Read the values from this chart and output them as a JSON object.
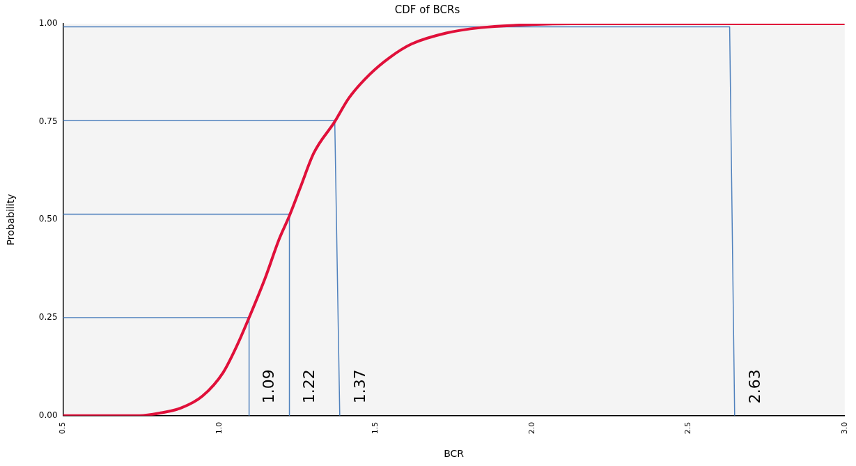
{
  "chart_data": {
    "type": "line",
    "title": "CDF of BCRs",
    "xlabel": "BCR",
    "ylabel": "Probability",
    "xlim": [
      0.5,
      3.0
    ],
    "xticks": [
      0.5,
      {
        "value": 1,
        "label": "1.0"
      },
      1.5,
      {
        "value": 2,
        "label": "2.0"
      },
      2.5,
      {
        "value": 3,
        "label": "3.0"
      }
    ],
    "ylim": [
      0,
      1
    ],
    "yticks": [
      {
        "value": 0,
        "label": "0.00"
      },
      0.25,
      {
        "value": 0.5,
        "label": "0.50"
      },
      0.75,
      {
        "value": 1,
        "label": "1.00"
      }
    ],
    "grid": false,
    "legend": false,
    "marker": "none",
    "line_style": "solid",
    "series": [
      {
        "color": "#e0103a",
        "x": [
          0.5,
          0.745,
          0.812,
          0.879,
          0.946,
          1.012,
          1.057,
          1.095,
          1.146,
          1.191,
          1.224,
          1.258,
          1.302,
          1.369,
          1.414,
          1.48,
          1.547,
          1.614,
          1.725,
          1.837,
          1.948,
          2.127,
          3.0
        ],
        "values": [
          0,
          0,
          0.007,
          0.02,
          0.05,
          0.11,
          0.18,
          0.25,
          0.35,
          0.45,
          0.51,
          0.58,
          0.67,
          0.75,
          0.81,
          0.87,
          0.915,
          0.948,
          0.976,
          0.99,
          0.996,
          1,
          1
        ]
      },
      {
        "color": "#4f81bd",
        "x": [
          0.5,
          1.095,
          1.095
        ],
        "values": [
          0.25,
          0.25,
          0
        ]
      },
      {
        "color": "#4f81bd",
        "x": [
          0.5,
          1.224,
          1.224
        ],
        "values": [
          0.514,
          0.514,
          0
        ]
      },
      {
        "color": "#4f81bd",
        "x": [
          0.5,
          1.369,
          1.385
        ],
        "values": [
          0.753,
          0.753,
          0
        ]
      },
      {
        "color": "#4f81bd",
        "x": [
          0.5,
          2.632,
          2.648
        ],
        "values": [
          0.992,
          0.992,
          0
        ]
      }
    ],
    "annotations": [
      "1.09",
      "1.22",
      "1.37",
      "2.63"
    ]
  }
}
